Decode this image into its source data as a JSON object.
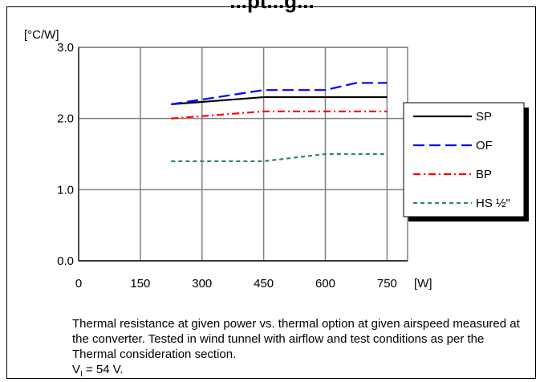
{
  "title_fragment": "...pt...g...",
  "chart_data": {
    "type": "line",
    "ylabel": "[°C/W]",
    "xlabel": "[W]",
    "xlim": [
      0,
      800
    ],
    "ylim": [
      0,
      3.0
    ],
    "x_ticks": [
      0,
      150,
      300,
      450,
      600,
      750
    ],
    "x_tick_labels": [
      "0",
      "150",
      "300",
      "450",
      "600",
      "750"
    ],
    "y_ticks": [
      0,
      1.0,
      2.0,
      3.0
    ],
    "y_tick_labels": [
      "0.0",
      "1.0",
      "2.0",
      "3.0"
    ],
    "grid": true,
    "legend_position": "right",
    "series": [
      {
        "name": "SP",
        "color": "#000000",
        "dash": "solid",
        "x": [
          225,
          450,
          600,
          750
        ],
        "y": [
          2.2,
          2.3,
          2.3,
          2.3
        ]
      },
      {
        "name": "OF",
        "color": "#0000ff",
        "dash": "long-dash",
        "x": [
          225,
          450,
          600,
          675,
          750
        ],
        "y": [
          2.2,
          2.4,
          2.4,
          2.5,
          2.5
        ]
      },
      {
        "name": "BP",
        "color": "#ff0000",
        "dash": "dash-dot",
        "x": [
          225,
          450,
          600,
          750
        ],
        "y": [
          2.0,
          2.1,
          2.1,
          2.1
        ]
      },
      {
        "name": "HS ½\"",
        "color": "#2e8b57",
        "dash": "short-dash",
        "x": [
          225,
          450,
          600,
          750
        ],
        "y": [
          1.4,
          1.4,
          1.5,
          1.5
        ]
      }
    ]
  },
  "caption": {
    "text": "Thermal resistance at given power vs. thermal option at given airspeed measured at the converter. Tested in wind tunnel with airflow and test conditions as per the Thermal consideration section.",
    "vi_prefix": "V",
    "vi_sub": "I",
    "vi_suffix": " = 54 V."
  }
}
